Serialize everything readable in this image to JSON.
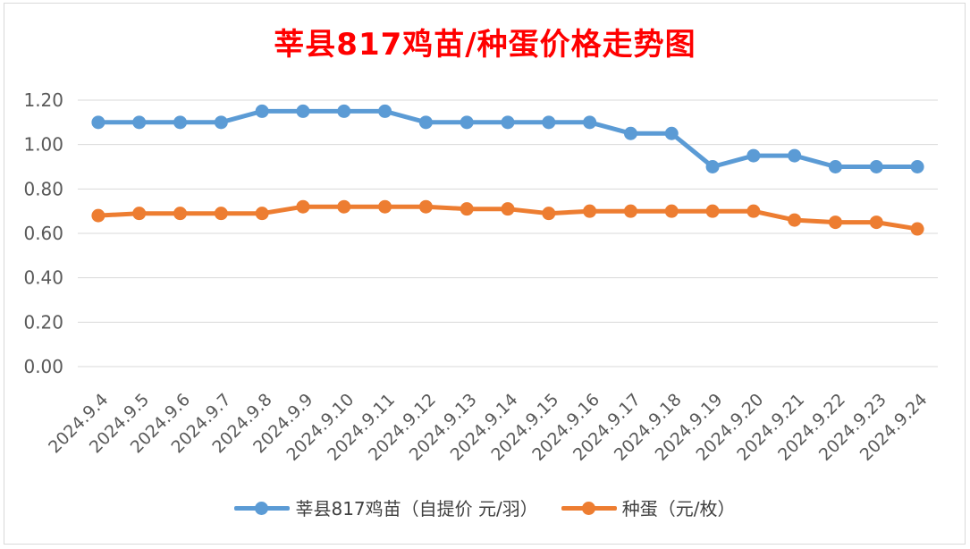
{
  "chart_data": {
    "type": "line",
    "title": "莘县817鸡苗/种蛋价格走势图",
    "title_color": "#ff0000",
    "categories": [
      "2024.9.4",
      "2024.9.5",
      "2024.9.6",
      "2024.9.7",
      "2024.9.8",
      "2024.9.9",
      "2024.9.10",
      "2024.9.11",
      "2024.9.12",
      "2024.9.13",
      "2024.9.14",
      "2024.9.15",
      "2024.9.16",
      "2024.9.17",
      "2024.9.18",
      "2024.9.19",
      "2024.9.20",
      "2024.9.21",
      "2024.9.22",
      "2024.9.23",
      "2024.9.24"
    ],
    "series": [
      {
        "name": "莘县817鸡苗（自提价 元/羽）",
        "color": "#5b9bd5",
        "values": [
          1.1,
          1.1,
          1.1,
          1.1,
          1.15,
          1.15,
          1.15,
          1.15,
          1.1,
          1.1,
          1.1,
          1.1,
          1.1,
          1.05,
          1.05,
          0.9,
          0.95,
          0.95,
          0.9,
          0.9,
          0.9
        ]
      },
      {
        "name": "种蛋（元/枚）",
        "color": "#ed7d31",
        "values": [
          0.68,
          0.69,
          0.69,
          0.69,
          0.69,
          0.72,
          0.72,
          0.72,
          0.72,
          0.71,
          0.71,
          0.69,
          0.7,
          0.7,
          0.7,
          0.7,
          0.7,
          0.66,
          0.65,
          0.65,
          0.62
        ]
      }
    ],
    "ylim": [
      0,
      1.2
    ],
    "yticks": [
      "0.00",
      "0.20",
      "0.40",
      "0.60",
      "0.80",
      "1.00",
      "1.20"
    ],
    "xlabel": "",
    "ylabel": "",
    "grid": true,
    "legend_position": "bottom"
  }
}
